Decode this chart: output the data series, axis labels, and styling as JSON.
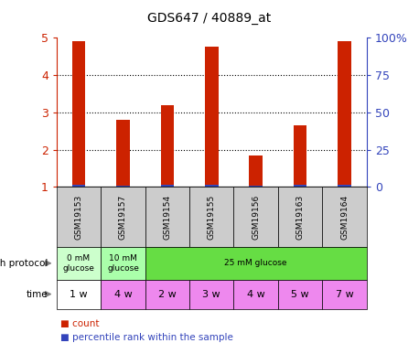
{
  "title": "GDS647 / 40889_at",
  "samples": [
    "GSM19153",
    "GSM19157",
    "GSM19154",
    "GSM19155",
    "GSM19156",
    "GSM19163",
    "GSM19164"
  ],
  "count_values": [
    4.9,
    2.8,
    3.2,
    4.75,
    1.85,
    2.65,
    4.9
  ],
  "percentile_values": [
    0.07,
    0.04,
    0.07,
    0.07,
    0.04,
    0.07,
    0.07
  ],
  "bar_bottom": 1.0,
  "ylim": [
    1,
    5
  ],
  "yticks": [
    1,
    2,
    3,
    4,
    5
  ],
  "ytick_labels": [
    "1",
    "2",
    "3",
    "4",
    "5"
  ],
  "y2tick_labels": [
    "0",
    "25",
    "50",
    "75",
    "100%"
  ],
  "count_color": "#cc2200",
  "percentile_color": "#3344bb",
  "grid_color": "#000000",
  "left_ylabel_color": "#cc2200",
  "right_ylabel_color": "#3344bb",
  "growth_protocol_row": [
    {
      "label": "0 mM\nglucose",
      "colspan": 1,
      "color": "#ccffcc"
    },
    {
      "label": "10 mM\nglucose",
      "colspan": 1,
      "color": "#aaffaa"
    },
    {
      "label": "25 mM glucose",
      "colspan": 5,
      "color": "#66dd44"
    }
  ],
  "time_row": [
    {
      "label": "1 w",
      "color": "#ffffff"
    },
    {
      "label": "4 w",
      "color": "#ee88ee"
    },
    {
      "label": "2 w",
      "color": "#ee88ee"
    },
    {
      "label": "3 w",
      "color": "#ee88ee"
    },
    {
      "label": "4 w",
      "color": "#ee88ee"
    },
    {
      "label": "5 w",
      "color": "#ee88ee"
    },
    {
      "label": "7 w",
      "color": "#ee88ee"
    }
  ],
  "legend_count_label": "count",
  "legend_percentile_label": "percentile rank within the sample",
  "growth_protocol_label": "growth protocol",
  "time_label": "time",
  "bg_color": "#ffffff",
  "plot_bg_color": "#ffffff",
  "sample_row_color": "#cccccc",
  "bar_width": 0.3
}
